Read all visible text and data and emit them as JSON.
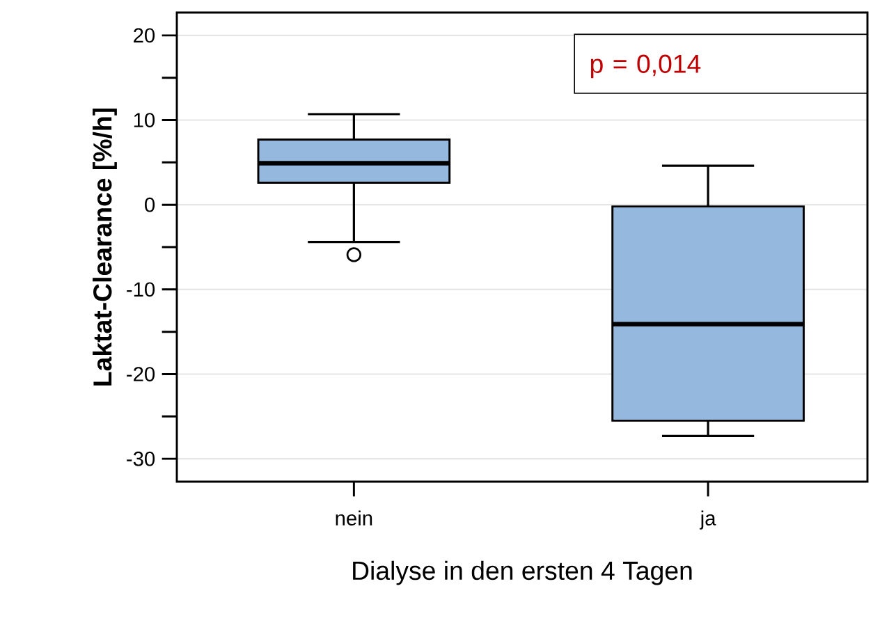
{
  "chart_data": {
    "type": "box",
    "xlabel": "Dialyse in den ersten 4 Tagen",
    "ylabel": "Laktat-Clearance [%/h]",
    "categories": [
      "nein",
      "ja"
    ],
    "boxes": [
      {
        "low": -4.4,
        "q1": 2.6,
        "median": 4.9,
        "q3": 7.7,
        "high": 10.7,
        "outliers": [
          -5.9
        ]
      },
      {
        "low": -27.3,
        "q1": -25.5,
        "median": -14.1,
        "q3": -0.2,
        "high": 4.6
      }
    ],
    "color": "#95b9de",
    "ylim": [
      -32.7,
      22.7
    ],
    "yticks": [
      -30,
      {
        "value": -25,
        "label": null
      },
      -20,
      {
        "value": -15,
        "label": null
      },
      -10,
      {
        "value": -5,
        "label": null
      },
      0,
      {
        "value": 5,
        "label": null
      },
      10,
      {
        "value": 15,
        "label": null
      },
      20
    ],
    "grid": "y",
    "annotations": [
      "p = 0,014"
    ]
  }
}
